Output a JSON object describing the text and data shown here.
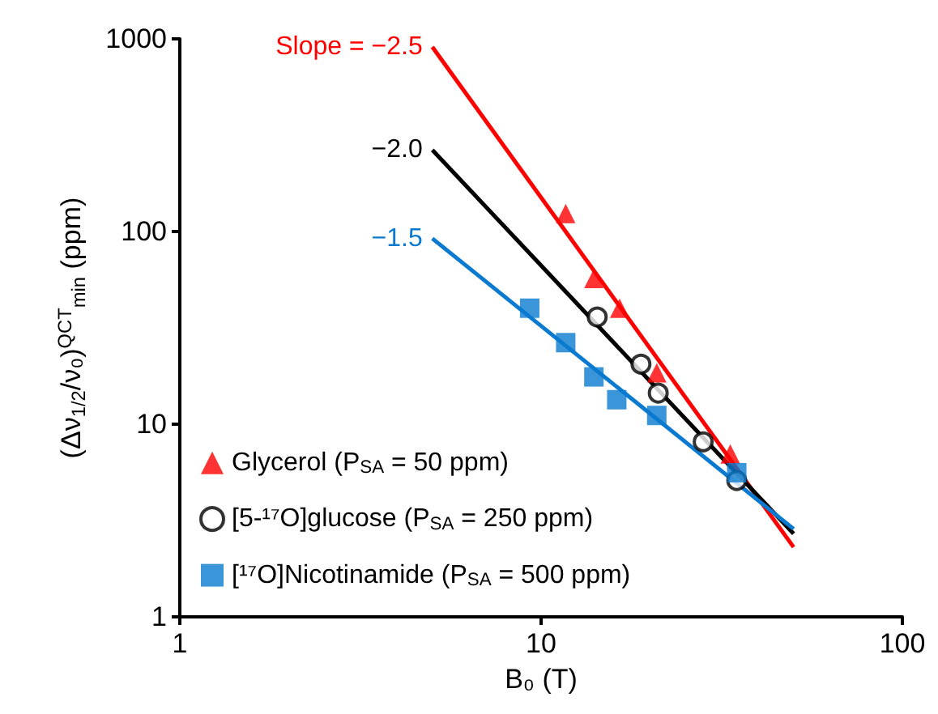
{
  "chart_data": {
    "type": "scatter",
    "xlabel": "B₀ (T)",
    "ylabel": "(Δν$_{1/2}$/ν₀)$^{QCT}$$_{min}$ (ppm)",
    "log": "xy",
    "xlim": [
      1,
      100
    ],
    "xticks": [
      1,
      10,
      100
    ],
    "ylim": [
      1,
      1000
    ],
    "yticks": [
      1,
      10,
      100,
      1000
    ],
    "grid": false,
    "legend": "bottom left",
    "series": [
      {
        "name": "Glycerol (P$_{SA}$ = 50 ppm)",
        "color": "#ff0000",
        "marker": "triangle",
        "x": [
          11.7,
          14.0,
          16.5,
          20.9,
          33.4
        ],
        "values": [
          124,
          57,
          40,
          18.5,
          7.0
        ]
      },
      {
        "name": "[5-¹⁷O]glucose (P$_{SA}$ = 250 ppm)",
        "color": "#000000",
        "marker": "circle",
        "x": [
          14.3,
          18.9,
          21.1,
          28.1,
          34.8
        ],
        "values": [
          36,
          20.5,
          14.5,
          8.1,
          5.1
        ]
      },
      {
        "name": "[¹⁷O]Nicotinamide (P$_{SA}$ = 500 ppm)",
        "color": "#0a7ad0",
        "marker": "square",
        "x": [
          9.3,
          11.7,
          14.0,
          16.2,
          20.9,
          34.8
        ],
        "values": [
          40,
          26.5,
          17.6,
          13.4,
          11.1,
          5.6
        ]
      },
      {
        "name": "Slope = −2.5",
        "type": "line",
        "color": "#ff0000",
        "marker": "none",
        "x": [
          5,
          50
        ],
        "values": [
          908,
          2.3
        ]
      },
      {
        "name": "−2.0",
        "type": "line",
        "color": "#000000",
        "marker": "none",
        "x": [
          5,
          50
        ],
        "values": [
          265,
          2.7
        ]
      },
      {
        "name": "−1.5",
        "type": "line",
        "color": "#0a7ad0",
        "marker": "none",
        "x": [
          5,
          50
        ],
        "values": [
          92,
          2.86
        ]
      }
    ]
  }
}
